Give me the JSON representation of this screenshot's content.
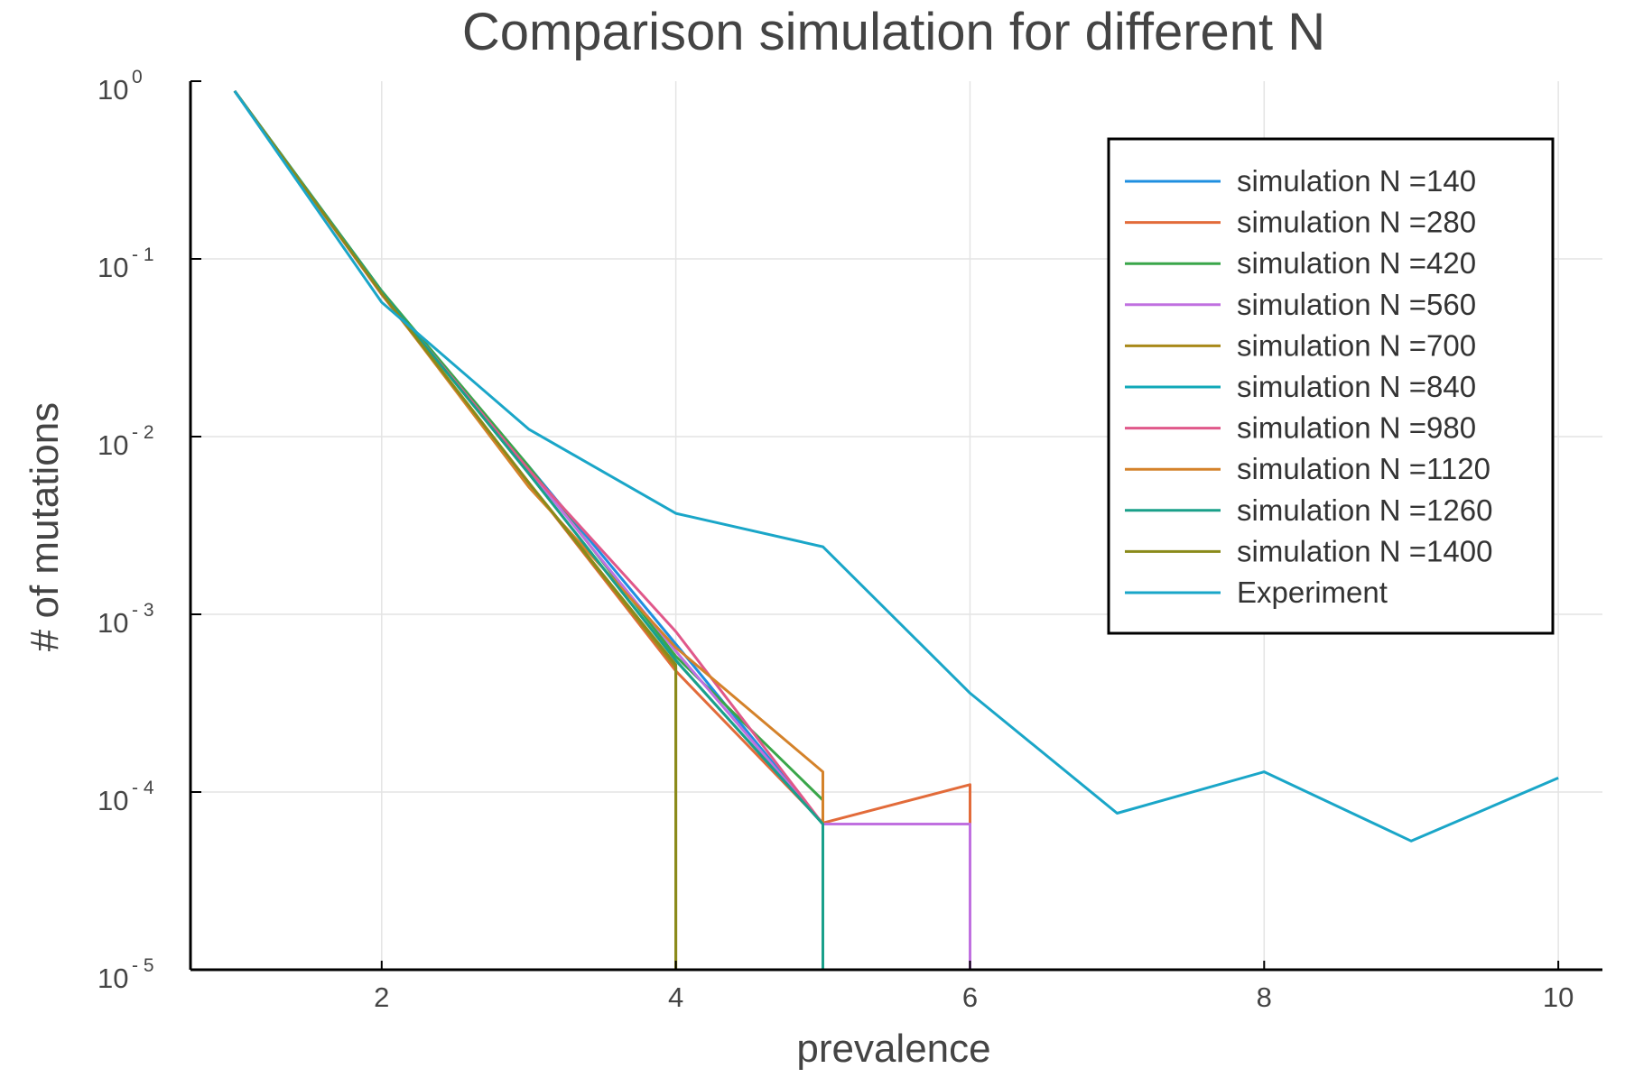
{
  "chart_data": {
    "type": "line",
    "title": "Comparison simulation for different N",
    "xlabel": "prevalence",
    "ylabel": "# of mutations",
    "xlim": [
      0.7,
      10.3
    ],
    "ylim": [
      1e-05,
      1
    ],
    "yscale": "log",
    "grid": true,
    "legend_position": "top-right",
    "x_ticks": [
      {
        "value": 2,
        "label": "2"
      },
      {
        "value": 4,
        "label": "4"
      },
      {
        "value": 6,
        "label": "6"
      },
      {
        "value": 8,
        "label": "8"
      },
      {
        "value": 10,
        "label": "10"
      }
    ],
    "y_ticks": [
      {
        "value": 1,
        "base": "10",
        "exp": "0"
      },
      {
        "value": 0.1,
        "base": "10",
        "exp": "- 1"
      },
      {
        "value": 0.01,
        "base": "10",
        "exp": "- 2"
      },
      {
        "value": 0.001,
        "base": "10",
        "exp": "- 3"
      },
      {
        "value": 0.0001,
        "base": "10",
        "exp": "- 4"
      },
      {
        "value": 1e-05,
        "base": "10",
        "exp": "- 5"
      }
    ],
    "series": [
      {
        "name": "simulation N =140",
        "color": "#1f8fe0",
        "points": [
          [
            1,
            0.88
          ],
          [
            2,
            0.065
          ],
          [
            3,
            0.0068
          ],
          [
            4,
            0.00068
          ],
          [
            5,
            6.6e-05
          ],
          [
            5,
            1e-05
          ]
        ]
      },
      {
        "name": "simulation N =280",
        "color": "#e26b3a",
        "points": [
          [
            1,
            0.88
          ],
          [
            2,
            0.063
          ],
          [
            3,
            0.0055
          ],
          [
            4,
            0.00048
          ],
          [
            5,
            6.7e-05
          ],
          [
            6,
            0.00011
          ],
          [
            6,
            1e-05
          ]
        ]
      },
      {
        "name": "simulation N =420",
        "color": "#3aa64a",
        "points": [
          [
            1,
            0.88
          ],
          [
            2,
            0.066
          ],
          [
            3,
            0.0068
          ],
          [
            4,
            0.00058
          ],
          [
            5,
            9e-05
          ],
          [
            5,
            1e-05
          ]
        ]
      },
      {
        "name": "simulation N =560",
        "color": "#c070e0",
        "points": [
          [
            1,
            0.88
          ],
          [
            2,
            0.064
          ],
          [
            3,
            0.0065
          ],
          [
            4,
            0.00062
          ],
          [
            5,
            6.6e-05
          ],
          [
            6,
            6.6e-05
          ],
          [
            6,
            1e-05
          ]
        ]
      },
      {
        "name": "simulation N =700",
        "color": "#a8891a",
        "points": [
          [
            1,
            0.88
          ],
          [
            2,
            0.064
          ],
          [
            3,
            0.0055
          ],
          [
            4,
            0.0005
          ],
          [
            4,
            1e-05
          ]
        ]
      },
      {
        "name": "simulation N =840",
        "color": "#10a8b8",
        "points": [
          [
            1,
            0.88
          ],
          [
            2,
            0.065
          ],
          [
            3,
            0.0062
          ],
          [
            4,
            0.00055
          ],
          [
            5,
            6.6e-05
          ],
          [
            5,
            1e-05
          ]
        ]
      },
      {
        "name": "simulation N =980",
        "color": "#e0588a",
        "points": [
          [
            1,
            0.88
          ],
          [
            2,
            0.064
          ],
          [
            3,
            0.0065
          ],
          [
            4,
            0.0008
          ],
          [
            5,
            6.6e-05
          ],
          [
            5,
            1e-05
          ]
        ]
      },
      {
        "name": "simulation N =1120",
        "color": "#d4822a",
        "points": [
          [
            1,
            0.88
          ],
          [
            2,
            0.064
          ],
          [
            3,
            0.0052
          ],
          [
            4,
            0.00065
          ],
          [
            5,
            0.00013
          ],
          [
            5,
            1e-05
          ]
        ]
      },
      {
        "name": "simulation N =1260",
        "color": "#1aa08a",
        "points": [
          [
            1,
            0.88
          ],
          [
            2,
            0.065
          ],
          [
            3,
            0.0062
          ],
          [
            4,
            0.00055
          ],
          [
            5,
            6.6e-05
          ],
          [
            5,
            1e-05
          ]
        ]
      },
      {
        "name": "simulation N =1400",
        "color": "#8a8a1a",
        "points": [
          [
            1,
            0.88
          ],
          [
            2,
            0.064
          ],
          [
            3,
            0.0055
          ],
          [
            4,
            0.00052
          ],
          [
            4,
            1e-05
          ]
        ]
      },
      {
        "name": "Experiment",
        "color": "#1aa6c8",
        "points": [
          [
            1,
            0.88
          ],
          [
            2,
            0.057
          ],
          [
            3,
            0.011
          ],
          [
            4,
            0.0037
          ],
          [
            5,
            0.0024
          ],
          [
            6,
            0.00036
          ],
          [
            7,
            7.6e-05
          ],
          [
            8,
            0.00013
          ],
          [
            9,
            5.3e-05
          ],
          [
            10,
            0.00012
          ]
        ]
      }
    ]
  }
}
